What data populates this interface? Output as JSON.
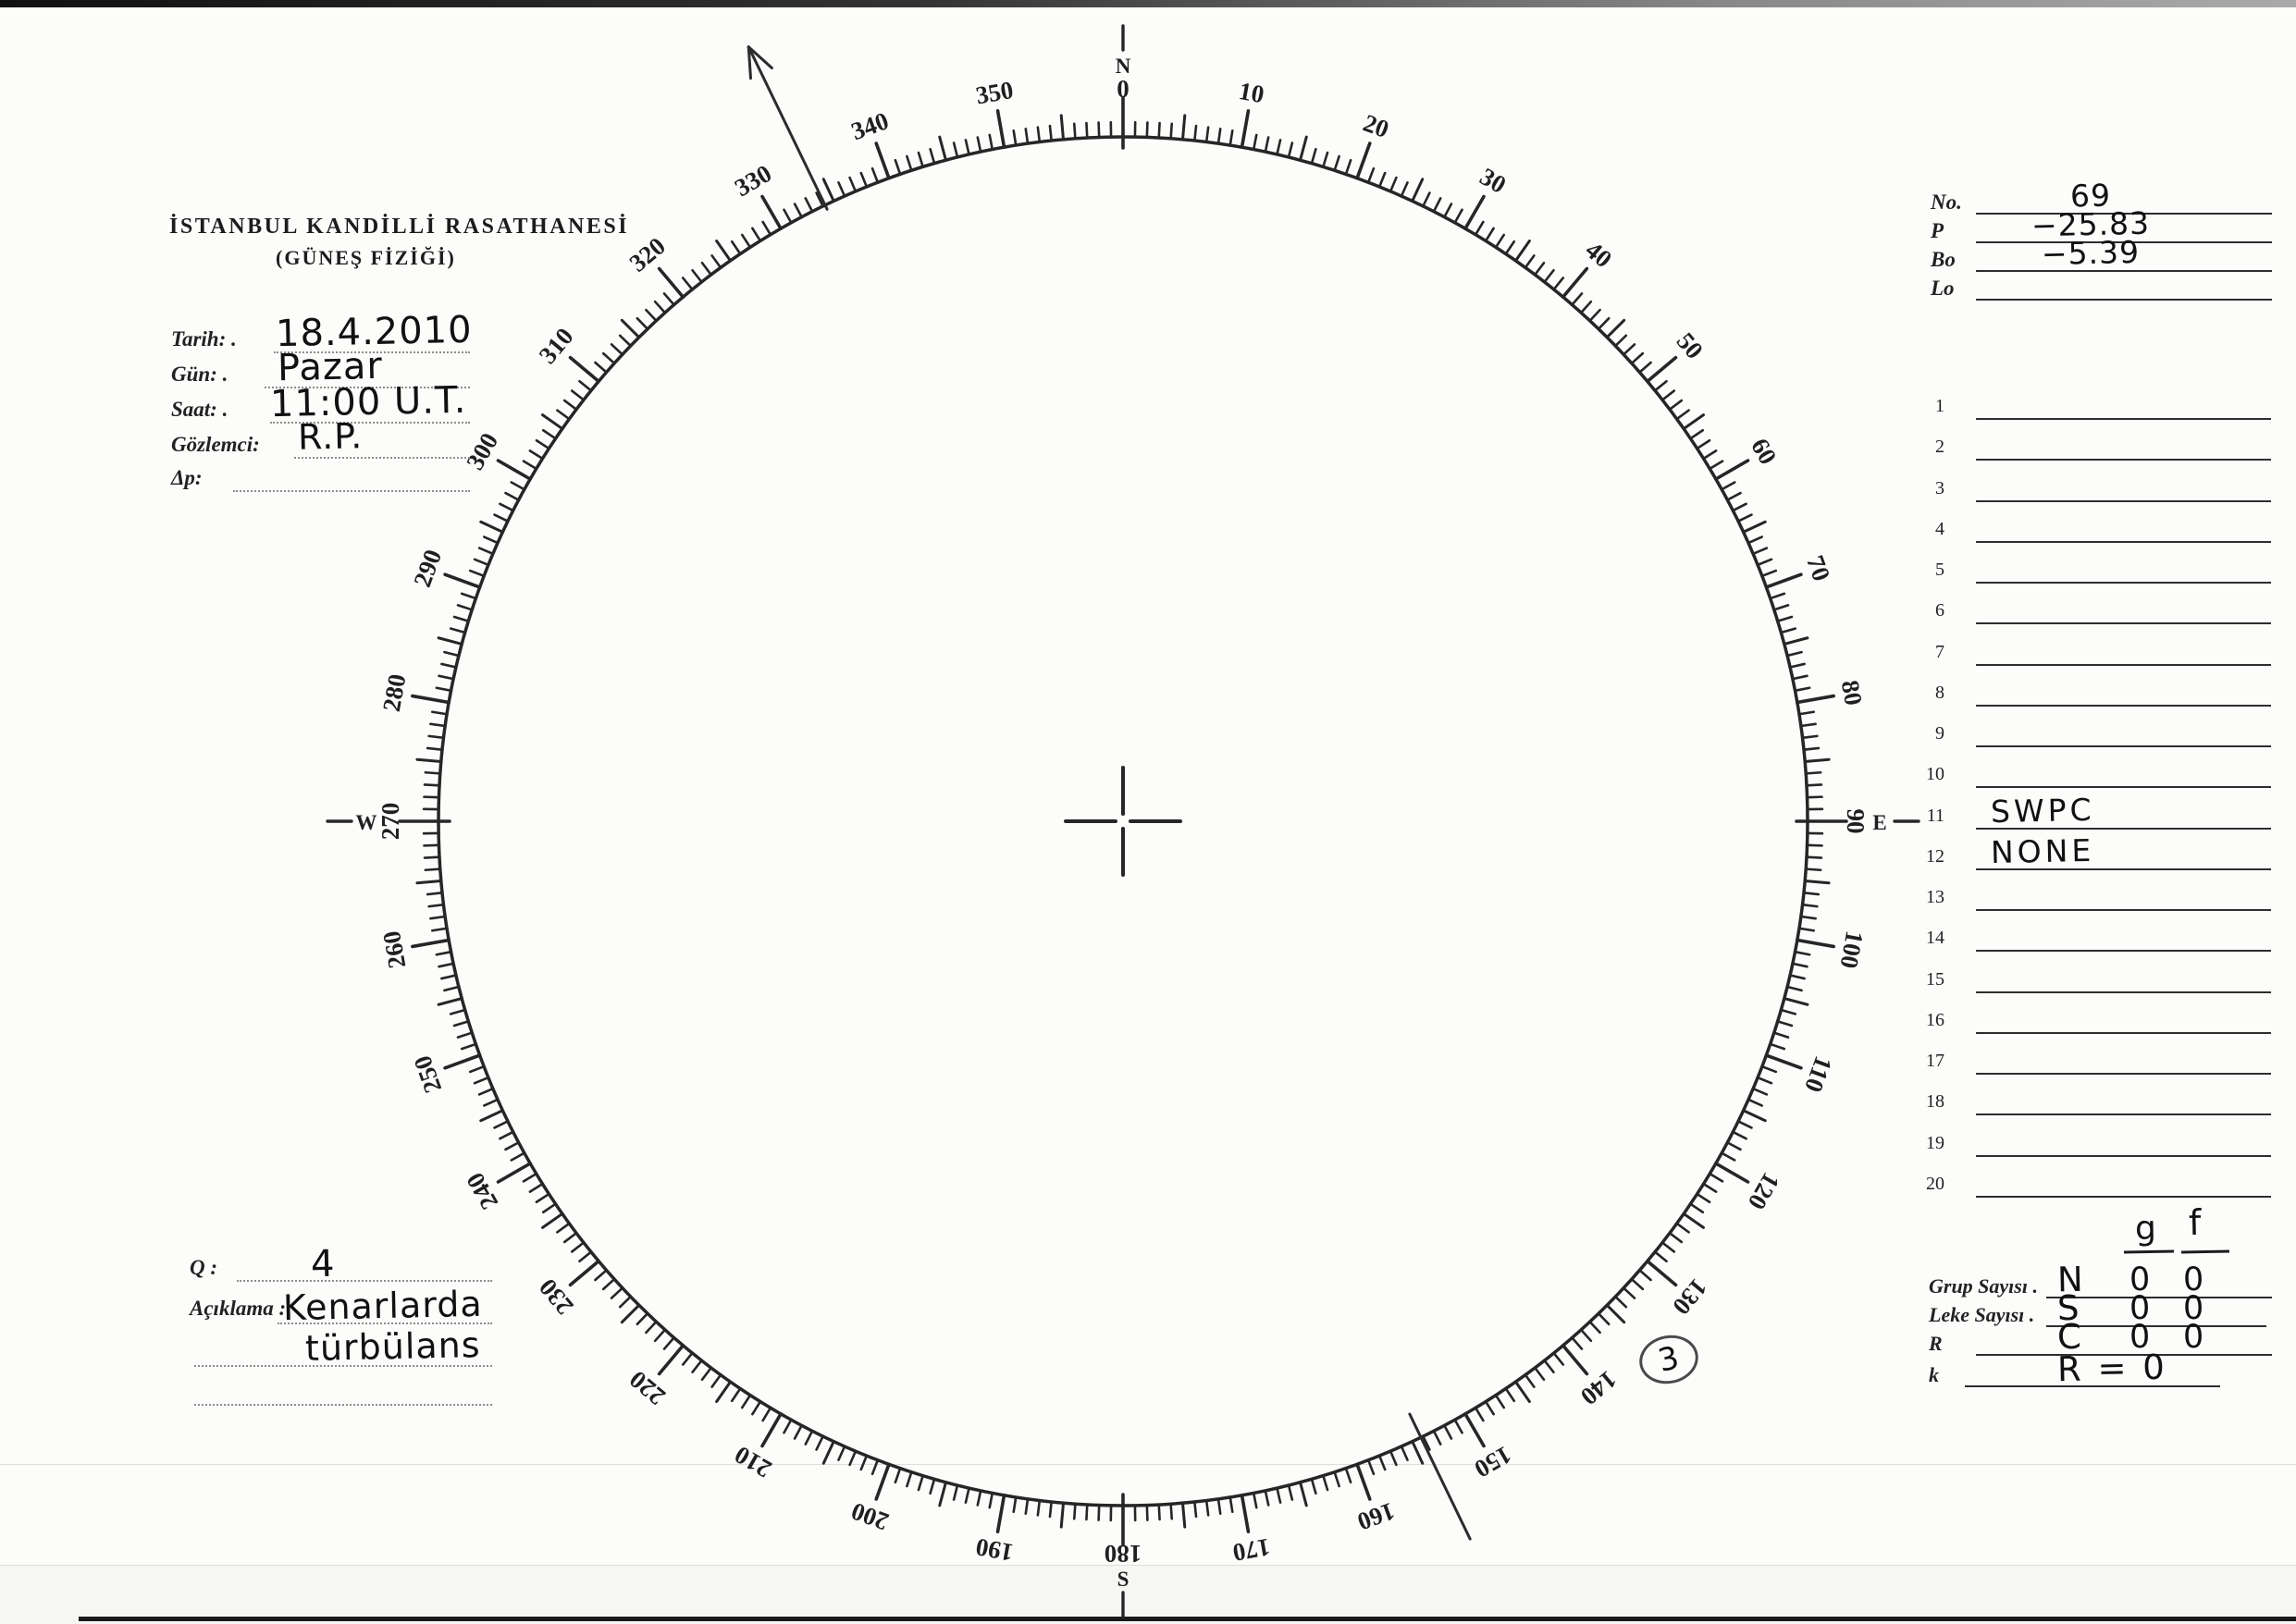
{
  "header": {
    "line1": "İSTANBUL KANDİLLİ RASATHANESİ",
    "line2": "(GÜNEŞ FİZİĞİ)"
  },
  "observation_fields": [
    {
      "label": "Tarih: .",
      "value": "18.4.2010"
    },
    {
      "label": "Gün: .",
      "value": "Pazar"
    },
    {
      "label": "Saat: .",
      "value": "11:00 U.T."
    },
    {
      "label": "Gözlemci:",
      "value": "R.P."
    },
    {
      "label": "Δp:",
      "value": ""
    }
  ],
  "ephemeris": [
    {
      "label": "No.",
      "value": "69"
    },
    {
      "label": "P",
      "value": "−25.83"
    },
    {
      "label": "Bo",
      "value": "−5.39"
    },
    {
      "label": "Lo",
      "value": ""
    }
  ],
  "region_list": [
    {
      "num": "1",
      "value": ""
    },
    {
      "num": "2",
      "value": ""
    },
    {
      "num": "3",
      "value": ""
    },
    {
      "num": "4",
      "value": ""
    },
    {
      "num": "5",
      "value": ""
    },
    {
      "num": "6",
      "value": ""
    },
    {
      "num": "7",
      "value": ""
    },
    {
      "num": "8",
      "value": ""
    },
    {
      "num": "9",
      "value": ""
    },
    {
      "num": "10",
      "value": ""
    },
    {
      "num": "11",
      "value": "SWPC"
    },
    {
      "num": "12",
      "value": "NONE"
    },
    {
      "num": "13",
      "value": ""
    },
    {
      "num": "14",
      "value": ""
    },
    {
      "num": "15",
      "value": ""
    },
    {
      "num": "16",
      "value": ""
    },
    {
      "num": "17",
      "value": ""
    },
    {
      "num": "18",
      "value": ""
    },
    {
      "num": "19",
      "value": ""
    },
    {
      "num": "20",
      "value": ""
    }
  ],
  "counts": {
    "gf": {
      "g": "g",
      "f": "f"
    },
    "rows": [
      {
        "label": "Grup Sayısı .",
        "letter": "N",
        "g": "0",
        "f": "0"
      },
      {
        "label": "Leke Sayısı .",
        "letter": "S",
        "g": "0",
        "f": "0"
      },
      {
        "label": "R",
        "letter": "C",
        "g": "0",
        "f": "0"
      },
      {
        "label": "k",
        "letter": "R = 0",
        "g": "",
        "f": ""
      }
    ]
  },
  "quality": {
    "label": "Q :",
    "value": "4"
  },
  "note": {
    "label": "Açıklama :",
    "line1": "Kenarlarda",
    "line2": "türbülans"
  },
  "circled_mark": "3",
  "protractor": {
    "tick_labels": [
      "0",
      "10",
      "20",
      "30",
      "40",
      "50",
      "60",
      "70",
      "80",
      "90",
      "100",
      "110",
      "120",
      "130",
      "140",
      "150",
      "160",
      "170",
      "180",
      "190",
      "200",
      "210",
      "220",
      "230",
      "240",
      "250",
      "260",
      "270",
      "280",
      "290",
      "300",
      "310",
      "320",
      "330",
      "340",
      "350"
    ],
    "cardinals": [
      {
        "angle": 0,
        "letter": "N"
      },
      {
        "angle": 90,
        "letter": "E"
      },
      {
        "angle": 180,
        "letter": "S"
      },
      {
        "angle": 270,
        "letter": "W"
      }
    ],
    "p_angle_deg": -25.83,
    "solar_north_arrow_angle_deg": 334.2,
    "solar_south_line_angle_deg": 154.2
  }
}
